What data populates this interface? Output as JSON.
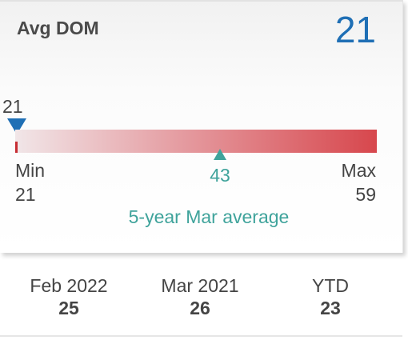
{
  "card": {
    "title": "Avg DOM",
    "value": "21"
  },
  "range": {
    "current_marker_label": "21",
    "current_value": 21,
    "min_label": "Min",
    "min_value": "21",
    "max_label": "Max",
    "max_value": "59",
    "average_value": "43",
    "average_caption": "5-year Mar average",
    "colors": {
      "current_marker": "#1f6fb5",
      "average_marker": "#3fa39b",
      "bar_start": "#f1e6e8",
      "bar_end": "#d7474d"
    }
  },
  "stats": [
    {
      "label": "Feb 2022",
      "value": "25"
    },
    {
      "label": "Mar 2021",
      "value": "26"
    },
    {
      "label": "YTD",
      "value": "23"
    }
  ]
}
